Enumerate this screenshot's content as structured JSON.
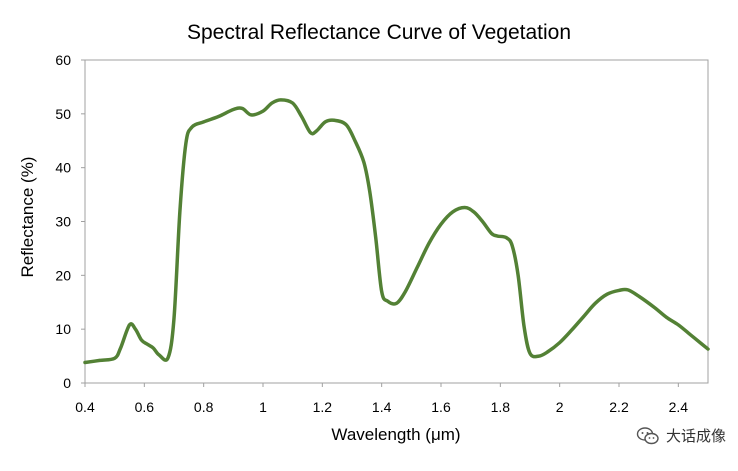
{
  "chart_data": {
    "type": "line",
    "title": "Spectral Reflectance Curve of Vegetation",
    "xlabel": "Wavelength  (μm)",
    "ylabel": "Reflectance  (%)",
    "xlim": [
      0.4,
      2.5
    ],
    "ylim": [
      0,
      60
    ],
    "x_ticks": [
      "0.4",
      "0.6",
      "0.8",
      "1",
      "1.2",
      "1.4",
      "1.6",
      "1.8",
      "2",
      "2.2",
      "2.4"
    ],
    "x_tick_values": [
      0.4,
      0.6,
      0.8,
      1.0,
      1.2,
      1.4,
      1.6,
      1.8,
      2.0,
      2.2,
      2.4
    ],
    "y_ticks": [
      "0",
      "10",
      "20",
      "30",
      "40",
      "50",
      "60"
    ],
    "y_tick_values": [
      0,
      10,
      20,
      30,
      40,
      50,
      60
    ],
    "grid": false,
    "legend": "none",
    "series": [
      {
        "name": "Vegetation",
        "color": "#538135",
        "x": [
          0.4,
          0.45,
          0.5,
          0.52,
          0.55,
          0.57,
          0.59,
          0.61,
          0.63,
          0.65,
          0.68,
          0.7,
          0.72,
          0.74,
          0.76,
          0.8,
          0.85,
          0.9,
          0.93,
          0.96,
          1.0,
          1.03,
          1.06,
          1.1,
          1.13,
          1.16,
          1.18,
          1.21,
          1.24,
          1.28,
          1.31,
          1.34,
          1.36,
          1.38,
          1.4,
          1.42,
          1.45,
          1.48,
          1.52,
          1.56,
          1.6,
          1.64,
          1.68,
          1.71,
          1.74,
          1.77,
          1.79,
          1.82,
          1.84,
          1.86,
          1.88,
          1.9,
          1.93,
          1.96,
          2.0,
          2.04,
          2.08,
          2.12,
          2.16,
          2.2,
          2.23,
          2.27,
          2.32,
          2.36,
          2.4,
          2.44,
          2.48,
          2.5
        ],
        "y": [
          3.8,
          4.2,
          4.6,
          6.5,
          10.8,
          10.0,
          8.0,
          7.2,
          6.5,
          5.2,
          4.7,
          12.0,
          32.0,
          44.5,
          47.5,
          48.5,
          49.5,
          50.8,
          51.0,
          49.8,
          50.5,
          52.0,
          52.6,
          52.0,
          49.5,
          46.5,
          46.8,
          48.5,
          48.8,
          48.0,
          45.0,
          41.0,
          35.5,
          27.0,
          17.0,
          15.2,
          14.8,
          17.0,
          21.5,
          26.0,
          29.5,
          31.8,
          32.6,
          31.8,
          30.0,
          27.8,
          27.3,
          27.0,
          25.5,
          20.0,
          10.5,
          5.5,
          5.0,
          5.8,
          7.5,
          9.8,
          12.3,
          14.8,
          16.5,
          17.2,
          17.3,
          16.0,
          14.0,
          12.2,
          10.8,
          9.0,
          7.2,
          6.3
        ]
      }
    ]
  },
  "watermark": {
    "text": "大话成像",
    "icon": "wechat-icon"
  }
}
